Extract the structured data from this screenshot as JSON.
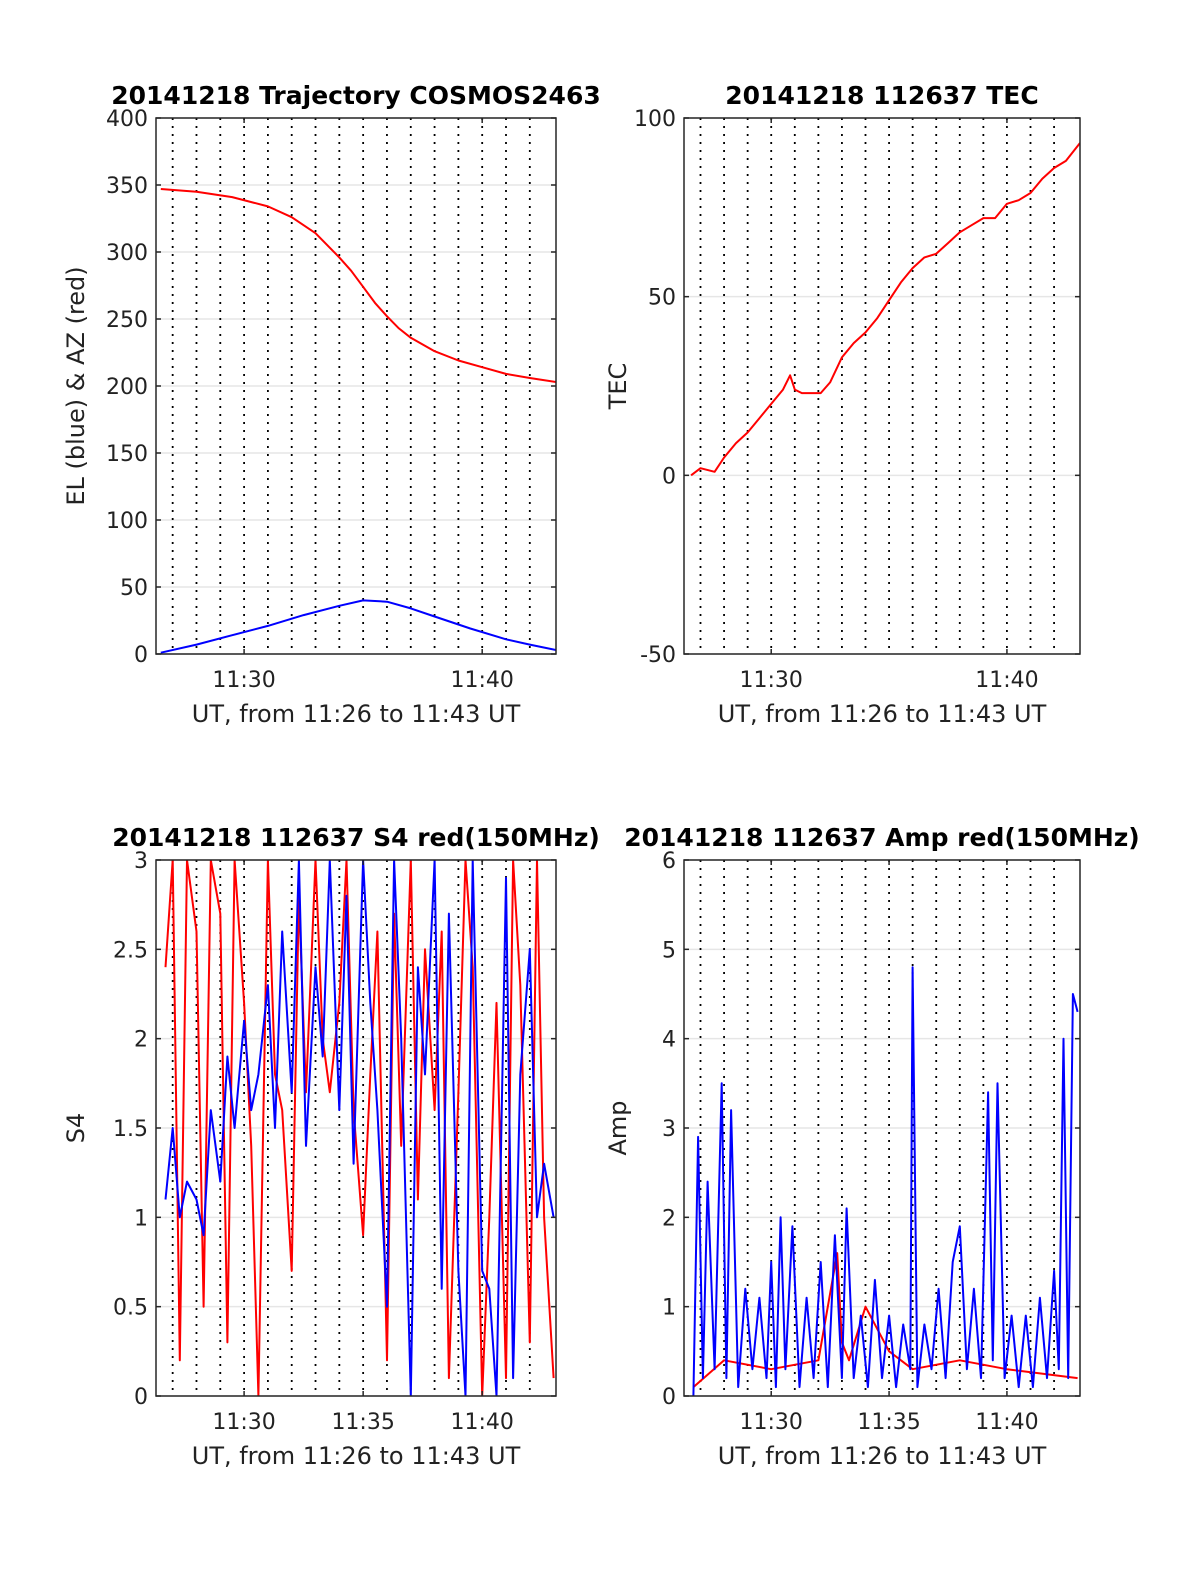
{
  "chart_data": [
    {
      "type": "line",
      "title": "20141218 Trajectory COSMOS2463",
      "xlabel": "UT, from 11:26 to 11:43 UT",
      "ylabel": "EL (blue) & AZ (red)",
      "xlim_minutes": [
        26.3,
        43.1
      ],
      "ylim": [
        0,
        400
      ],
      "yticks": [
        0,
        50,
        100,
        150,
        200,
        250,
        300,
        350,
        400
      ],
      "xticks": [
        30,
        40
      ],
      "xtick_labels": [
        "11:30",
        "11:40"
      ],
      "grid": true,
      "series": [
        {
          "color": "#ff0000",
          "x": [
            26.5,
            28,
            29.5,
            31,
            32,
            33,
            34,
            34.5,
            35,
            35.5,
            36,
            36.5,
            37,
            38,
            39,
            40,
            41,
            42,
            43.1
          ],
          "y": [
            347,
            345,
            341,
            334,
            326,
            314,
            296,
            286,
            274,
            262,
            252,
            243,
            236,
            226,
            219,
            214,
            209,
            206,
            203
          ]
        },
        {
          "color": "#0000ff",
          "x": [
            26.5,
            28,
            29.5,
            31,
            32.5,
            34,
            35,
            36,
            37,
            38,
            39.5,
            41,
            42,
            43.1
          ],
          "y": [
            1,
            7,
            14,
            21,
            29,
            36,
            40,
            39,
            34,
            28,
            19,
            11,
            7,
            3
          ]
        }
      ]
    },
    {
      "type": "line",
      "title": "20141218 112637 TEC",
      "xlabel": "UT, from 11:26 to 11:43 UT",
      "ylabel": "TEC",
      "xlim_minutes": [
        26.3,
        43.1
      ],
      "ylim": [
        -50,
        100
      ],
      "yticks": [
        -50,
        0,
        50,
        100
      ],
      "xticks": [
        30,
        40
      ],
      "xtick_labels": [
        "11:30",
        "11:40"
      ],
      "grid": true,
      "series": [
        {
          "color": "#ff0000",
          "x": [
            26.6,
            27.0,
            27.6,
            28.0,
            28.5,
            29.0,
            29.5,
            30.0,
            30.5,
            30.8,
            31.0,
            31.3,
            31.7,
            32.1,
            32.5,
            33.0,
            33.5,
            34.0,
            34.5,
            35.0,
            35.5,
            36.0,
            36.5,
            37.0,
            37.5,
            38.0,
            38.5,
            39.0,
            39.5,
            40.0,
            40.5,
            41.0,
            41.5,
            42.0,
            42.5,
            43.1
          ],
          "y": [
            0,
            2,
            1,
            5,
            9,
            12,
            16,
            20,
            24,
            28,
            24,
            23,
            23,
            23,
            26,
            33,
            37,
            40,
            44,
            49,
            54,
            58,
            61,
            62,
            65,
            68,
            70,
            72,
            72,
            76,
            77,
            79,
            83,
            86,
            88,
            93
          ]
        }
      ]
    },
    {
      "type": "line",
      "title": "20141218 112637 S4 red(150MHz)",
      "xlabel": "UT, from 11:26 to 11:43 UT",
      "ylabel": "S4",
      "xlim_minutes": [
        26.3,
        43.1
      ],
      "ylim": [
        0,
        3
      ],
      "yticks": [
        0,
        0.5,
        1,
        1.5,
        2,
        2.5,
        3
      ],
      "xticks": [
        30,
        35,
        40
      ],
      "xtick_labels": [
        "11:30",
        "11:35",
        "11:40"
      ],
      "grid": true,
      "series": [
        {
          "color": "#ff0000",
          "x": [
            26.7,
            27.0,
            27.3,
            27.6,
            28.0,
            28.3,
            28.6,
            29.0,
            29.3,
            29.6,
            30.0,
            30.3,
            30.6,
            31.0,
            31.3,
            31.6,
            32.0,
            32.3,
            32.6,
            33.0,
            33.3,
            33.6,
            34.0,
            34.3,
            34.6,
            35.0,
            35.3,
            35.6,
            36.0,
            36.3,
            36.6,
            37.0,
            37.3,
            37.6,
            38.0,
            38.3,
            38.6,
            39.0,
            39.3,
            39.6,
            40.0,
            40.3,
            40.6,
            41.0,
            41.3,
            41.6,
            42.0,
            42.3,
            42.6,
            43.0
          ],
          "y": [
            2.4,
            3,
            0.2,
            3,
            2.6,
            0.5,
            3,
            2.7,
            0.3,
            3,
            2.2,
            1.4,
            0,
            3,
            1.8,
            1.6,
            0.7,
            2.8,
            1.7,
            3,
            2.0,
            1.7,
            2.2,
            3,
            1.6,
            0.9,
            1.8,
            2.6,
            0.2,
            2.7,
            1.4,
            3,
            1.1,
            2.5,
            1.6,
            2.6,
            0.1,
            1.7,
            3,
            2.4,
            0,
            1.0,
            2.2,
            0.1,
            3,
            2.3,
            0.3,
            3,
            1.0,
            0.1
          ]
        },
        {
          "color": "#0000ff",
          "x": [
            26.7,
            27.0,
            27.3,
            27.6,
            28.0,
            28.3,
            28.6,
            29.0,
            29.3,
            29.6,
            30.0,
            30.3,
            30.6,
            31.0,
            31.3,
            31.6,
            32.0,
            32.3,
            32.6,
            33.0,
            33.3,
            33.6,
            34.0,
            34.3,
            34.6,
            35.0,
            35.3,
            35.6,
            36.0,
            36.3,
            36.6,
            37.0,
            37.3,
            37.6,
            38.0,
            38.3,
            38.6,
            39.0,
            39.3,
            39.6,
            40.0,
            40.3,
            40.6,
            41.0,
            41.3,
            41.6,
            42.0,
            42.3,
            42.6,
            43.0
          ],
          "y": [
            1.1,
            1.5,
            1.0,
            1.2,
            1.1,
            0.9,
            1.6,
            1.2,
            1.9,
            1.5,
            2.1,
            1.6,
            1.8,
            2.3,
            1.5,
            2.6,
            1.7,
            3,
            1.4,
            2.4,
            1.9,
            3,
            1.6,
            2.8,
            1.3,
            3,
            2.2,
            1.6,
            0.5,
            3,
            2.0,
            0,
            2.4,
            1.8,
            3,
            0.6,
            2.7,
            0.7,
            0,
            3,
            0.7,
            0.6,
            0,
            2.9,
            0.1,
            1.8,
            2.5,
            1.0,
            1.3,
            1.0
          ]
        }
      ]
    },
    {
      "type": "line",
      "title": "20141218 112637 Amp red(150MHz)",
      "xlabel": "UT, from 11:26 to 11:43 UT",
      "ylabel": "Amp",
      "xlim_minutes": [
        26.3,
        43.1
      ],
      "ylim": [
        0,
        6
      ],
      "yticks": [
        0,
        1,
        2,
        3,
        4,
        5,
        6
      ],
      "xticks": [
        30,
        35,
        40
      ],
      "xtick_labels": [
        "11:30",
        "11:35",
        "11:40"
      ],
      "grid": true,
      "series": [
        {
          "color": "#ff0000",
          "x": [
            26.7,
            28.0,
            30.0,
            32.0,
            32.8,
            33.0,
            33.3,
            34.0,
            35.0,
            36.0,
            38.0,
            40.0,
            43.0
          ],
          "y": [
            0.1,
            0.4,
            0.3,
            0.4,
            1.6,
            0.6,
            0.4,
            1.0,
            0.5,
            0.3,
            0.4,
            0.3,
            0.2
          ]
        },
        {
          "color": "#0000ff",
          "x": [
            26.7,
            26.9,
            27.1,
            27.3,
            27.6,
            27.9,
            28.1,
            28.3,
            28.6,
            28.9,
            29.2,
            29.5,
            29.8,
            30.0,
            30.2,
            30.4,
            30.6,
            30.9,
            31.2,
            31.5,
            31.8,
            32.1,
            32.4,
            32.7,
            33.0,
            33.2,
            33.5,
            33.8,
            34.1,
            34.4,
            34.7,
            35.0,
            35.3,
            35.6,
            35.9,
            36.0,
            36.2,
            36.5,
            36.8,
            37.1,
            37.4,
            37.7,
            38.0,
            38.3,
            38.6,
            38.9,
            39.2,
            39.4,
            39.6,
            39.9,
            40.2,
            40.5,
            40.8,
            41.1,
            41.4,
            41.7,
            42.0,
            42.2,
            42.4,
            42.6,
            42.8,
            43.0
          ],
          "y": [
            0,
            2.9,
            0.2,
            2.4,
            0.3,
            3.5,
            0.2,
            3.2,
            0.1,
            1.2,
            0.3,
            1.1,
            0.2,
            1.5,
            0.1,
            2.0,
            0.3,
            1.9,
            0.1,
            1.1,
            0.2,
            1.5,
            0.1,
            1.8,
            0.2,
            2.1,
            0.2,
            0.9,
            0.1,
            1.3,
            0.2,
            0.9,
            0.1,
            0.8,
            0.3,
            4.8,
            0.1,
            0.8,
            0.3,
            1.2,
            0.2,
            1.5,
            1.9,
            0.3,
            1.2,
            0.2,
            3.4,
            0.4,
            3.5,
            0.2,
            0.9,
            0.1,
            0.9,
            0.1,
            1.1,
            0.2,
            1.4,
            0.3,
            4.0,
            0.2,
            4.5,
            4.3
          ]
        }
      ]
    }
  ]
}
